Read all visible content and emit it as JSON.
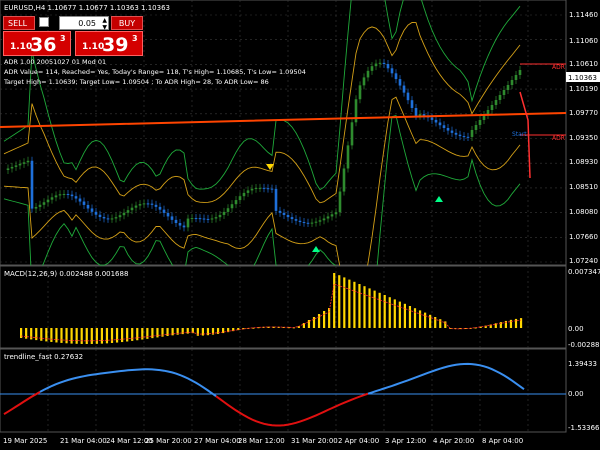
{
  "header": {
    "title": "EURUSD,H4  1.10677 1.10677 1.10363 1.10363"
  },
  "trade_panel": {
    "sell_label": "SELL",
    "buy_label": "BUY",
    "lot_value": "0.05",
    "sell_price_small": "1.10",
    "sell_price_big": "36",
    "sell_price_sup": "3",
    "buy_price_small": "1.10",
    "buy_price_big": "39",
    "buy_price_sup": "3"
  },
  "info_lines": {
    "line1": "ADR 1.00 20051027 01 Mod 01",
    "line2": "ADR Value= 114, Reached= Yes, Today's Range= 118, T's High= 1.10685, T's Low= 1.09504",
    "line3": "Target High= 1.10639; Target Low= 1.09504 ; To ADR High= 28, To ADR Low= 86"
  },
  "price_axis": [
    "1.11460",
    "1.11060",
    "1.10610",
    "1.10190",
    "1.09770",
    "1.09350",
    "1.08930",
    "1.08510",
    "1.08080",
    "1.07660",
    "1.07240"
  ],
  "current_price_label": "1.10363",
  "chart_labels": {
    "adr_high": "ADR",
    "adr_low": "ADR",
    "start": "Start"
  },
  "macd": {
    "title": "MACD(12,26,9) 0.002488 0.001688",
    "axis": [
      "0.007347",
      "0.00",
      "-0.002881"
    ]
  },
  "trendline": {
    "title": "trendline_fast 0.27632",
    "axis": [
      "1.39433",
      "0.00",
      "-1.53366"
    ]
  },
  "time_axis": [
    "19 Mar 2025",
    "21 Mar 04:00",
    "24 Mar 12:00",
    "25 Mar 20:00",
    "27 Mar 04:00",
    "28 Mar 12:00",
    "31 Mar 20:00",
    "2 Apr 04:00",
    "3 Apr 12:00",
    "4 Apr 20:00",
    "8 Apr 04:00"
  ],
  "colors": {
    "background": "#000000",
    "bull_candle": "#2e8b2e",
    "bear_candle": "#1e6fd9",
    "ema_orange": "#ff4400",
    "bollinger_outer": "#1faa3a",
    "bollinger_inner": "#d4a017",
    "macd_hist": "#ffd700",
    "macd_signal": "#ff3030",
    "trend_blue": "#3a8ff0",
    "trend_red": "#e01010",
    "grid": "#3a3a3a"
  }
}
